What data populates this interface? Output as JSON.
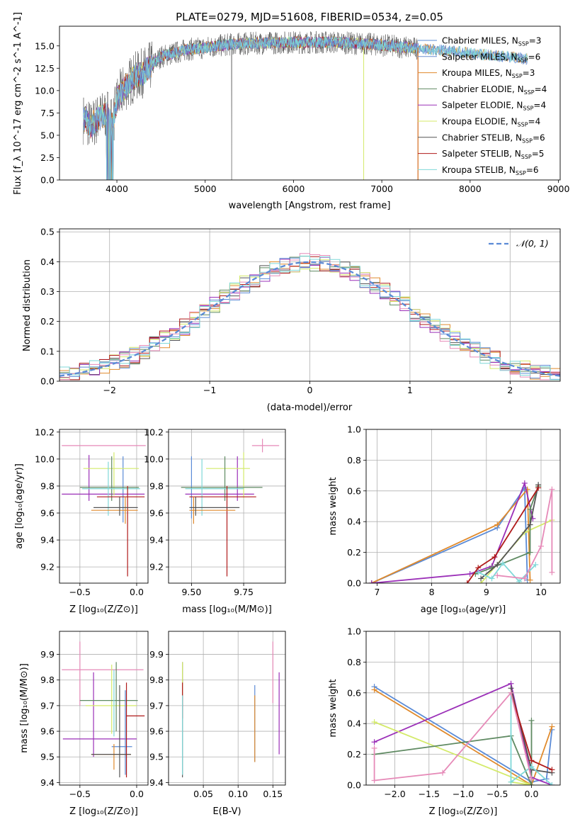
{
  "figure_title": "PLATE=0279, MJD=51608, FIBERID=0534, z=0.05",
  "colors": {
    "Chabrier MILES": "#5b8bd6",
    "Salpeter MILES": "#6f8fd1",
    "Kroupa MILES": "#e08a2c",
    "Chabrier ELODIE": "#5f8a62",
    "Salpeter ELODIE": "#9b30b8",
    "Kroupa ELODIE": "#d4ea6a",
    "Chabrier STELIB": "#555555",
    "Salpeter STELIB": "#b01a1a",
    "Kroupa STELIB": "#7fd8d8",
    "extra": "#e68ab8"
  },
  "chart_data": [
    {
      "id": "spectrum",
      "type": "line",
      "xlabel": "wavelength [Angstrom, rest frame]",
      "ylabel": "Flux [f_λ 10^-17 erg cm^-2 s^-1 A^-1]",
      "xlim": [
        3350,
        9020
      ],
      "ylim": [
        0,
        17.2
      ],
      "xticks": [
        4000,
        5000,
        6000,
        7000,
        8000,
        9000
      ],
      "yticks": [
        0.0,
        2.5,
        5.0,
        7.5,
        10.0,
        12.5,
        15.0
      ],
      "yticklabels": [
        "0.0",
        "2.5",
        "5.0",
        "7.5",
        "10.0",
        "12.5",
        "15.0"
      ],
      "legend": "upper-right",
      "series": [
        {
          "name": "Chabrier MILES",
          "nssp": "3"
        },
        {
          "name": "Salpeter MILES",
          "nssp": "6"
        },
        {
          "name": "Kroupa MILES",
          "nssp": "3"
        },
        {
          "name": "Chabrier ELODIE",
          "nssp": "4"
        },
        {
          "name": "Salpeter ELODIE",
          "nssp": "4"
        },
        {
          "name": "Kroupa ELODIE",
          "nssp": "4"
        },
        {
          "name": "Chabrier STELIB",
          "nssp": "6"
        },
        {
          "name": "Salpeter STELIB",
          "nssp": "5"
        },
        {
          "name": "Kroupa STELIB",
          "nssp": "6"
        }
      ],
      "data_shape": {
        "x": [
          3650,
          3700,
          3800,
          3900,
          3950,
          4000,
          4100,
          4200,
          4300,
          4500,
          4800,
          5000,
          5300,
          5600,
          6000,
          6500,
          7000,
          7400,
          7800,
          8200,
          8600,
          8800
        ],
        "y": [
          6.8,
          6.0,
          7.0,
          7.5,
          6.0,
          9.0,
          10.5,
          11.5,
          12.0,
          13.8,
          14.6,
          14.8,
          15.2,
          15.3,
          15.4,
          15.4,
          15.1,
          14.7,
          14.4,
          14.0,
          13.6,
          13.4
        ]
      }
    },
    {
      "id": "residuals",
      "type": "histogram",
      "xlabel": "(data-model)/error",
      "ylabel": "Normed distribution",
      "xlim": [
        -2.5,
        2.5
      ],
      "ylim": [
        0,
        0.51
      ],
      "xticks": [
        -2,
        -1,
        0,
        1,
        2
      ],
      "xticklabels": [
        "−2",
        "−1",
        "0",
        "1",
        "2"
      ],
      "yticks": [
        0.0,
        0.1,
        0.2,
        0.3,
        0.4,
        0.5
      ],
      "yticklabels": [
        "0.0",
        "0.1",
        "0.2",
        "0.3",
        "0.4",
        "0.5"
      ],
      "legend_label": "𝒩(0, 1)",
      "bin_width": 0.1
    },
    {
      "id": "z-age",
      "type": "errorbar",
      "xlabel": "Z [log10(Z/Z⊙)]",
      "ylabel": "age [log10(age/yr)]",
      "xlim": [
        -0.68,
        0.1
      ],
      "ylim": [
        9.08,
        10.22
      ],
      "xticks": [
        -0.5,
        0.0
      ],
      "xticklabels": [
        "−0.5",
        "0.0"
      ],
      "yticks": [
        9.2,
        9.4,
        9.6,
        9.8,
        10.0,
        10.2
      ],
      "yticklabels": [
        "9.2",
        "9.4",
        "9.6",
        "9.8",
        "10.0",
        "10.2"
      ],
      "points": [
        {
          "c": "extra",
          "x": -0.3,
          "y": 10.1,
          "xl": -0.66,
          "xh": 0.08,
          "yl": 10.1,
          "yh": 10.1
        },
        {
          "c": "Chabrier MILES",
          "x": -0.12,
          "y": 9.96,
          "xl": -0.12,
          "xh": -0.12,
          "yl": 9.53,
          "yh": 10.02
        },
        {
          "c": "Salpeter ELODIE",
          "x": -0.42,
          "y": 9.74,
          "xl": -0.66,
          "xh": 0.07,
          "yl": 9.69,
          "yh": 10.03
        },
        {
          "c": "Kroupa ELODIE",
          "x": -0.2,
          "y": 9.93,
          "xl": -0.47,
          "xh": 0.02,
          "yl": 9.73,
          "yh": 10.05
        },
        {
          "c": "Chabrier ELODIE",
          "x": -0.22,
          "y": 9.79,
          "xl": -0.5,
          "xh": 0.02,
          "yl": 9.69,
          "yh": 10.02
        },
        {
          "c": "Kroupa STELIB",
          "x": -0.25,
          "y": 9.78,
          "xl": -0.48,
          "xh": 0.03,
          "yl": 9.58,
          "yh": 9.98
        },
        {
          "c": "Salpeter STELIB",
          "x": -0.08,
          "y": 9.72,
          "xl": -0.35,
          "xh": 0.07,
          "yl": 9.13,
          "yh": 9.8
        },
        {
          "c": "Kroupa MILES",
          "x": -0.1,
          "y": 9.62,
          "xl": -0.4,
          "xh": 0.01,
          "yl": 9.52,
          "yh": 9.72
        },
        {
          "c": "Chabrier STELIB",
          "x": -0.15,
          "y": 9.64,
          "xl": -0.38,
          "xh": 0.01,
          "yl": 9.58,
          "yh": 9.72
        }
      ]
    },
    {
      "id": "mass-age",
      "type": "errorbar",
      "xlabel": "mass [log10(M/M⊙)]",
      "ylabel": "",
      "xlim": [
        9.39,
        9.95
      ],
      "ylim": [
        9.08,
        10.22
      ],
      "xticks": [
        9.5,
        9.75
      ],
      "xticklabels": [
        "9.50",
        "9.75"
      ],
      "yticks": [
        9.2,
        9.4,
        9.6,
        9.8,
        10.0,
        10.2
      ],
      "yticklabels": [
        "9.2",
        "9.4",
        "9.6",
        "9.8",
        "10.0",
        "10.2"
      ],
      "points": [
        {
          "c": "extra",
          "x": 9.84,
          "y": 10.1,
          "xl": 9.79,
          "xh": 9.92,
          "yl": 10.05,
          "yh": 10.15
        },
        {
          "c": "Chabrier MILES",
          "x": 9.5,
          "y": 9.9,
          "xl": 9.5,
          "xh": 9.5,
          "yl": 9.56,
          "yh": 10.02
        },
        {
          "c": "Salpeter ELODIE",
          "x": 9.72,
          "y": 9.74,
          "xl": 9.47,
          "xh": 9.8,
          "yl": 9.69,
          "yh": 10.02
        },
        {
          "c": "Kroupa ELODIE",
          "x": 9.75,
          "y": 9.93,
          "xl": 9.57,
          "xh": 9.78,
          "yl": 9.71,
          "yh": 10.05
        },
        {
          "c": "Chabrier ELODIE",
          "x": 9.66,
          "y": 9.79,
          "xl": 9.45,
          "xh": 9.84,
          "yl": 9.69,
          "yh": 10.02
        },
        {
          "c": "Kroupa STELIB",
          "x": 9.55,
          "y": 9.78,
          "xl": 9.47,
          "xh": 9.75,
          "yl": 9.58,
          "yh": 10.0
        },
        {
          "c": "Salpeter STELIB",
          "x": 9.67,
          "y": 9.72,
          "xl": 9.49,
          "xh": 9.81,
          "yl": 9.13,
          "yh": 9.8
        },
        {
          "c": "Kroupa MILES",
          "x": 9.51,
          "y": 9.62,
          "xl": 9.49,
          "xh": 9.71,
          "yl": 9.52,
          "yh": 9.72
        },
        {
          "c": "Chabrier STELIB",
          "x": 9.52,
          "y": 9.64,
          "xl": 9.49,
          "xh": 9.73,
          "yl": 9.58,
          "yh": 9.72
        }
      ]
    },
    {
      "id": "age-weight",
      "type": "line",
      "xlabel": "age [log10(age/yr)]",
      "ylabel": "mass weight",
      "xlim": [
        6.8,
        10.35
      ],
      "ylim": [
        0,
        1.0
      ],
      "xticks": [
        7,
        8,
        9,
        10
      ],
      "xticklabels": [
        "7",
        "8",
        "9",
        "10"
      ],
      "yticks": [
        0.0,
        0.2,
        0.4,
        0.6,
        0.8,
        1.0
      ],
      "yticklabels": [
        "0.0",
        "0.2",
        "0.4",
        "0.6",
        "0.8",
        "1.0"
      ],
      "series": [
        {
          "c": "Chabrier MILES",
          "x": [
            6.9,
            9.2,
            9.7,
            9.75
          ],
          "y": [
            0.0,
            0.36,
            0.62,
            0.02
          ]
        },
        {
          "c": "Kroupa MILES",
          "x": [
            6.9,
            9.2,
            9.75,
            9.8
          ],
          "y": [
            0.0,
            0.38,
            0.61,
            0.02
          ]
        },
        {
          "c": "Salpeter ELODIE",
          "x": [
            6.9,
            8.7,
            9.1,
            9.7,
            9.85
          ],
          "y": [
            0.0,
            0.06,
            0.11,
            0.65,
            0.42
          ]
        },
        {
          "c": "Kroupa ELODIE",
          "x": [
            8.9,
            9.7,
            10.2
          ],
          "y": [
            0.0,
            0.33,
            0.41
          ]
        },
        {
          "c": "Chabrier ELODIE",
          "x": [
            8.8,
            9.1,
            9.8,
            9.8,
            9.95
          ],
          "y": [
            0.06,
            0.1,
            0.2,
            0.48,
            0.63
          ]
        },
        {
          "c": "Chabrier STELIB",
          "x": [
            8.9,
            9.2,
            9.8,
            9.95
          ],
          "y": [
            0.03,
            0.12,
            0.38,
            0.64
          ]
        },
        {
          "c": "Salpeter STELIB",
          "x": [
            8.65,
            8.85,
            9.15,
            9.95
          ],
          "y": [
            0.0,
            0.1,
            0.17,
            0.62
          ]
        },
        {
          "c": "Kroupa STELIB",
          "x": [
            8.85,
            9.1,
            9.3,
            9.6,
            9.9
          ],
          "y": [
            0.07,
            0.03,
            0.13,
            0.01,
            0.12
          ]
        },
        {
          "c": "extra",
          "x": [
            9.2,
            9.7,
            10.0,
            10.2,
            10.2
          ],
          "y": [
            0.05,
            0.03,
            0.24,
            0.61,
            0.07
          ]
        }
      ]
    },
    {
      "id": "z-mass",
      "type": "errorbar",
      "xlabel": "Z [log10(Z/Z⊙)]",
      "ylabel": "mass [log10(M/M⊙)]",
      "xlim": [
        -0.68,
        0.1
      ],
      "ylim": [
        9.39,
        9.99
      ],
      "xticks": [
        -0.5,
        0.0
      ],
      "xticklabels": [
        "−0.5",
        "0.0"
      ],
      "yticks": [
        9.4,
        9.5,
        9.6,
        9.7,
        9.8,
        9.9
      ],
      "yticklabels": [
        "9.4",
        "9.5",
        "9.6",
        "9.7",
        "9.8",
        "9.9"
      ],
      "points": [
        {
          "c": "extra",
          "x": -0.5,
          "y": 9.84,
          "xl": -0.66,
          "xh": 0.06,
          "yl": 9.7,
          "yh": 9.95
        },
        {
          "c": "Salpeter ELODIE",
          "x": -0.38,
          "y": 9.57,
          "xl": -0.65,
          "xh": 0.0,
          "yl": 9.5,
          "yh": 9.83
        },
        {
          "c": "Kroupa ELODIE",
          "x": -0.22,
          "y": 9.7,
          "xl": -0.45,
          "xh": 0.0,
          "yl": 9.59,
          "yh": 9.86
        },
        {
          "c": "Chabrier ELODIE",
          "x": -0.18,
          "y": 9.72,
          "xl": -0.5,
          "xh": 0.01,
          "yl": 9.6,
          "yh": 9.87
        },
        {
          "c": "Chabrier MILES",
          "x": -0.1,
          "y": 9.54,
          "xl": -0.22,
          "xh": -0.04,
          "yl": 9.43,
          "yh": 9.76
        },
        {
          "c": "Kroupa MILES",
          "x": -0.2,
          "y": 9.51,
          "xl": -0.4,
          "xh": -0.05,
          "yl": 9.45,
          "yh": 9.55
        },
        {
          "c": "Chabrier STELIB",
          "x": -0.15,
          "y": 9.51,
          "xl": -0.4,
          "xh": -0.05,
          "yl": 9.42,
          "yh": 9.78
        },
        {
          "c": "Salpeter STELIB",
          "x": -0.09,
          "y": 9.66,
          "xl": -0.09,
          "xh": 0.07,
          "yl": 9.42,
          "yh": 9.79
        },
        {
          "c": "Kroupa STELIB",
          "x": -0.2,
          "y": 9.6,
          "xl": -0.2,
          "xh": -0.2,
          "yl": 9.58,
          "yh": 9.84
        }
      ]
    },
    {
      "id": "ebv-mass",
      "type": "errorbar",
      "xlabel": "E(B-V)",
      "ylabel": "",
      "xlim": [
        0.0,
        0.168
      ],
      "ylim": [
        9.39,
        9.99
      ],
      "xticks": [
        0.05,
        0.1,
        0.15
      ],
      "xticklabels": [
        "0.05",
        "0.10",
        "0.15"
      ],
      "yticks": [
        9.4,
        9.5,
        9.6,
        9.7,
        9.8,
        9.9
      ],
      "yticklabels": [
        "9.4",
        "9.5",
        "9.6",
        "9.7",
        "9.8",
        "9.9"
      ],
      "points": [
        {
          "c": "Chabrier STELIB",
          "x": 0.02,
          "y": 9.6,
          "xl": 0.02,
          "xh": 0.02,
          "yl": 9.42,
          "yh": 9.87
        },
        {
          "c": "Kroupa ELODIE",
          "x": 0.02,
          "y": 9.8,
          "xl": 0.02,
          "xh": 0.02,
          "yl": 9.74,
          "yh": 9.87
        },
        {
          "c": "Salpeter STELIB",
          "x": 0.02,
          "y": 9.72,
          "xl": 0.02,
          "xh": 0.02,
          "yl": 9.65,
          "yh": 9.79
        },
        {
          "c": "Kroupa STELIB",
          "x": 0.02,
          "y": 9.58,
          "xl": 0.02,
          "xh": 0.02,
          "yl": 9.43,
          "yh": 9.74
        },
        {
          "c": "Chabrier MILES",
          "x": 0.124,
          "y": 9.65,
          "xl": 0.124,
          "xh": 0.124,
          "yl": 9.48,
          "yh": 9.78
        },
        {
          "c": "Kroupa MILES",
          "x": 0.124,
          "y": 9.6,
          "xl": 0.124,
          "xh": 0.124,
          "yl": 9.48,
          "yh": 9.74
        },
        {
          "c": "extra",
          "x": 0.15,
          "y": 9.8,
          "xl": 0.15,
          "xh": 0.15,
          "yl": 9.71,
          "yh": 9.95
        },
        {
          "c": "Salpeter ELODIE",
          "x": 0.159,
          "y": 9.65,
          "xl": 0.159,
          "xh": 0.159,
          "yl": 9.51,
          "yh": 9.83
        }
      ]
    },
    {
      "id": "z-weight",
      "type": "line",
      "xlabel": "Z [log10(Z/Z⊙)]",
      "ylabel": "mass weight",
      "xlim": [
        -2.42,
        0.42
      ],
      "ylim": [
        0,
        1.0
      ],
      "xticks": [
        -2.0,
        -1.5,
        -1.0,
        -0.5,
        0.0
      ],
      "xticklabels": [
        "−2.0",
        "−1.5",
        "−1.0",
        "−0.5",
        "0.0"
      ],
      "yticks": [
        0.0,
        0.2,
        0.4,
        0.6,
        0.8,
        1.0
      ],
      "yticklabels": [
        "0.0",
        "0.2",
        "0.4",
        "0.6",
        "0.8",
        "1.0"
      ],
      "series": [
        {
          "c": "Chabrier MILES",
          "x": [
            -2.3,
            0.0,
            0.22,
            0.3
          ],
          "y": [
            0.64,
            0.02,
            0.04,
            0.36
          ]
        },
        {
          "c": "Kroupa MILES",
          "x": [
            -2.3,
            0.0,
            0.3
          ],
          "y": [
            0.62,
            0.0,
            0.38
          ]
        },
        {
          "c": "Salpeter ELODIE",
          "x": [
            -2.3,
            -0.3,
            0.0,
            0.3
          ],
          "y": [
            0.28,
            0.66,
            0.05,
            0.0
          ]
        },
        {
          "c": "Kroupa ELODIE",
          "x": [
            -2.3,
            0.0,
            -0.3
          ],
          "y": [
            0.41,
            0.0,
            0.02
          ]
        },
        {
          "c": "Chabrier ELODIE",
          "x": [
            -2.3,
            -0.3,
            0.0,
            0.0
          ],
          "y": [
            0.2,
            0.32,
            0.0,
            0.42
          ]
        },
        {
          "c": "Chabrier STELIB",
          "x": [
            -0.3,
            0.0,
            0.3
          ],
          "y": [
            0.63,
            0.1,
            0.08
          ]
        },
        {
          "c": "Salpeter STELIB",
          "x": [
            -0.3,
            0.0,
            0.3
          ],
          "y": [
            0.6,
            0.16,
            0.1
          ]
        },
        {
          "c": "Kroupa STELIB",
          "x": [
            -0.3,
            -0.3,
            0.0,
            0.3
          ],
          "y": [
            0.6,
            0.02,
            0.12,
            0.0
          ]
        },
        {
          "c": "extra",
          "x": [
            -2.3,
            -2.3,
            -1.3,
            -0.3,
            0.0
          ],
          "y": [
            0.24,
            0.03,
            0.08,
            0.6,
            0.04
          ]
        }
      ]
    }
  ]
}
